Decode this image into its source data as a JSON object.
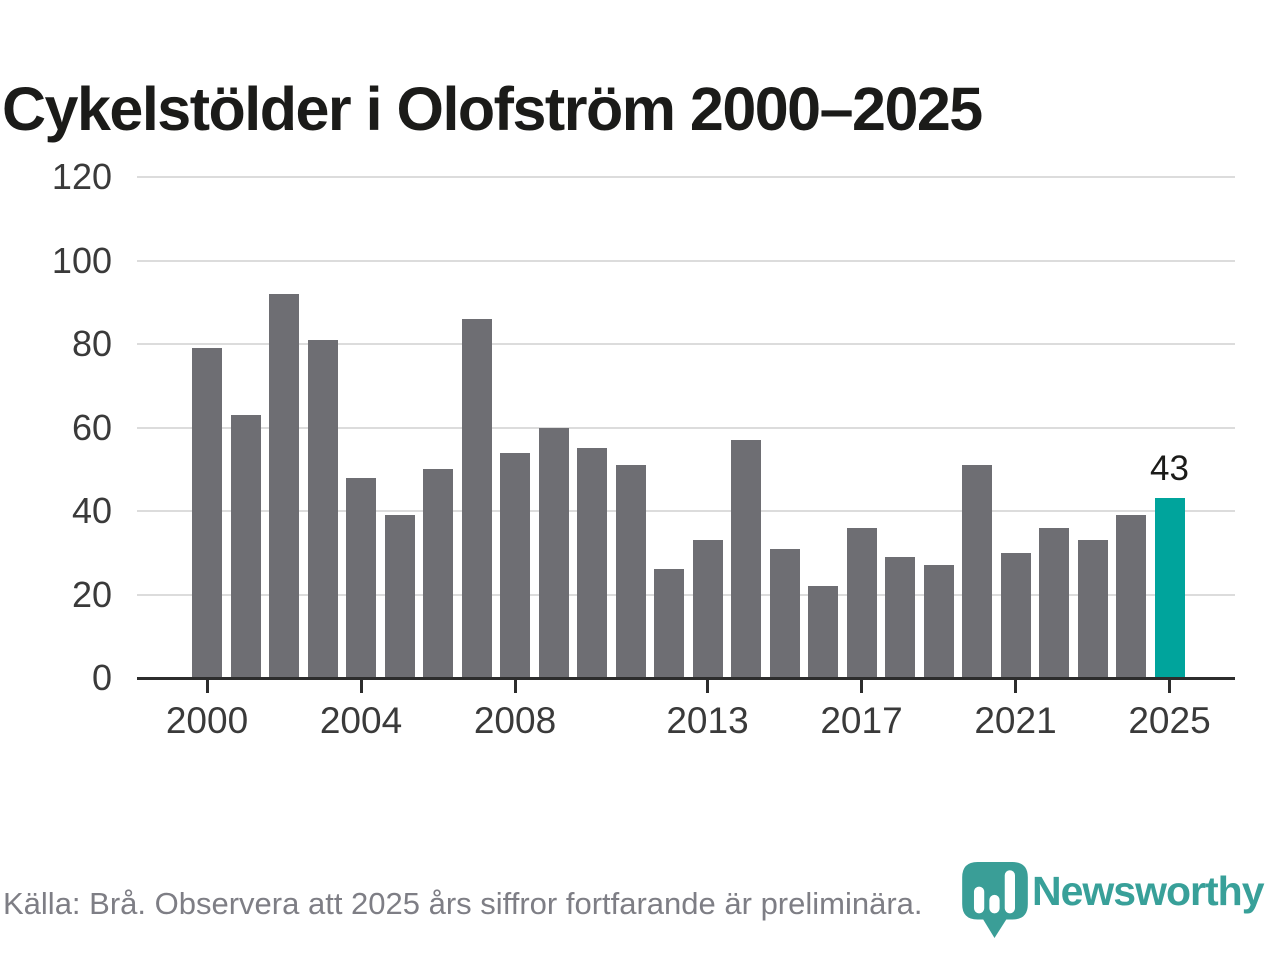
{
  "title": "Cykelstölder i Olofström 2000–2025",
  "chart_data": {
    "type": "bar",
    "title": "Cykelstölder i Olofström 2000–2025",
    "categories": [
      2000,
      2001,
      2002,
      2003,
      2004,
      2005,
      2006,
      2007,
      2008,
      2009,
      2010,
      2011,
      2012,
      2013,
      2014,
      2015,
      2016,
      2017,
      2018,
      2019,
      2020,
      2021,
      2022,
      2023,
      2024,
      2025
    ],
    "values": [
      79,
      63,
      92,
      81,
      48,
      39,
      50,
      86,
      54,
      60,
      55,
      51,
      26,
      33,
      57,
      31,
      22,
      36,
      29,
      27,
      51,
      30,
      36,
      33,
      39,
      43
    ],
    "xlabel": "",
    "ylabel": "",
    "ylim": [
      0,
      120
    ],
    "yticks": [
      0,
      20,
      40,
      60,
      80,
      100,
      120
    ],
    "xtick_labels": [
      "2000",
      "2004",
      "2008",
      "2013",
      "2017",
      "2021",
      "2025"
    ],
    "grid": "horizontal",
    "legend": "none",
    "bar_color": "#6e6e73",
    "highlight_color": "#00a49c",
    "highlight": {
      "category": 2025,
      "value_label": "43"
    }
  },
  "footer": {
    "source": "Källa: Brå. Observera att 2025 års siffror fortfarande är preliminära."
  },
  "logo": {
    "brand": "Newsworthy",
    "color": "#38a099",
    "icon": "newsworthy-bubble-barchart-icon"
  }
}
